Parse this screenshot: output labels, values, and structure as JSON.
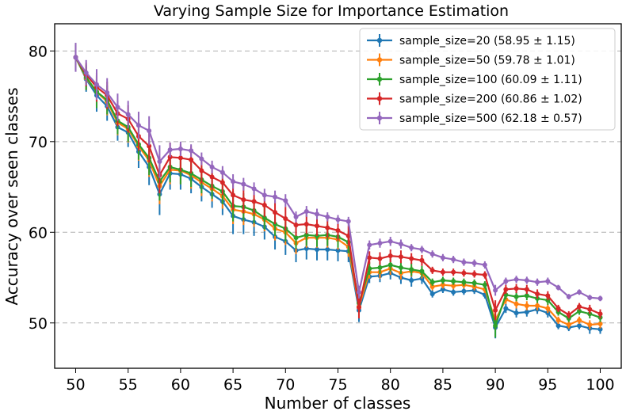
{
  "chart_data": {
    "type": "line",
    "title": "Varying Sample Size for Importance Estimation",
    "xlabel": "Number of classes",
    "ylabel": "Accuracy over seen classes",
    "xlim": [
      48,
      102
    ],
    "ylim": [
      45,
      83
    ],
    "xticks": [
      50,
      55,
      60,
      65,
      70,
      75,
      80,
      85,
      90,
      95,
      100
    ],
    "yticks": [
      50,
      60,
      70,
      80
    ],
    "grid": "horizontal-dashed",
    "legend_position": "top-right",
    "x": [
      50,
      51,
      52,
      53,
      54,
      55,
      56,
      57,
      58,
      59,
      60,
      61,
      62,
      63,
      64,
      65,
      66,
      67,
      68,
      69,
      70,
      71,
      72,
      73,
      74,
      75,
      76,
      77,
      78,
      79,
      80,
      81,
      82,
      83,
      84,
      85,
      86,
      87,
      88,
      89,
      90,
      91,
      92,
      93,
      94,
      95,
      96,
      97,
      98,
      99,
      100
    ],
    "series": [
      {
        "name": "sample_size=20 (58.95 ± 1.15)",
        "color": "#1f77b4",
        "values": [
          79.3,
          76.9,
          75.1,
          73.9,
          71.6,
          71.0,
          68.9,
          67.2,
          64.2,
          66.5,
          66.4,
          65.9,
          65.0,
          64.2,
          63.4,
          61.8,
          61.4,
          61.1,
          60.6,
          59.5,
          59.0,
          58.0,
          58.2,
          58.1,
          58.1,
          58.0,
          57.9,
          51.4,
          55.1,
          55.2,
          55.5,
          55.0,
          54.7,
          54.9,
          53.2,
          53.7,
          53.4,
          53.5,
          53.6,
          53.1,
          49.5,
          51.6,
          51.1,
          51.2,
          51.5,
          51.1,
          49.7,
          49.5,
          49.7,
          49.4,
          49.3
        ],
        "errors": [
          1.5,
          1.4,
          1.8,
          1.6,
          1.5,
          1.6,
          1.8,
          2.0,
          2.3,
          1.8,
          1.7,
          1.6,
          1.6,
          1.5,
          1.5,
          2.0,
          1.6,
          1.5,
          1.4,
          1.4,
          1.5,
          1.3,
          1.2,
          1.2,
          1.2,
          1.2,
          1.2,
          1.3,
          0.7,
          0.7,
          0.7,
          0.7,
          0.7,
          0.6,
          0.4,
          0.4,
          0.4,
          0.4,
          0.4,
          0.4,
          1.2,
          0.5,
          0.5,
          0.5,
          0.5,
          0.5,
          0.4,
          0.4,
          0.4,
          0.6,
          0.5
        ]
      },
      {
        "name": "sample_size=50 (59.78 ± 1.01)",
        "color": "#ff7f0e",
        "values": [
          79.3,
          77.0,
          75.5,
          74.4,
          72.1,
          71.4,
          69.5,
          67.9,
          65.1,
          66.9,
          66.8,
          66.3,
          65.5,
          64.8,
          64.0,
          62.5,
          62.3,
          62.0,
          61.4,
          60.4,
          60.0,
          58.8,
          59.4,
          59.4,
          59.4,
          59.2,
          58.4,
          51.8,
          55.6,
          55.6,
          56.0,
          55.5,
          55.7,
          55.5,
          54.0,
          54.2,
          54.1,
          54.2,
          54.0,
          53.7,
          50.3,
          52.6,
          52.1,
          51.9,
          51.9,
          51.6,
          50.3,
          49.8,
          50.3,
          49.8,
          49.9
        ],
        "errors": [
          1.4,
          1.3,
          1.6,
          1.5,
          1.4,
          1.5,
          1.6,
          1.8,
          2.0,
          1.6,
          1.5,
          1.5,
          1.5,
          1.4,
          1.4,
          1.6,
          1.5,
          1.4,
          1.3,
          1.3,
          1.4,
          1.2,
          1.1,
          1.1,
          1.1,
          1.1,
          1.1,
          1.2,
          0.7,
          0.7,
          0.7,
          0.7,
          0.6,
          0.6,
          0.4,
          0.4,
          0.4,
          0.4,
          0.4,
          0.4,
          1.1,
          0.5,
          0.5,
          0.5,
          0.5,
          0.5,
          0.4,
          0.4,
          0.4,
          0.5,
          0.5
        ]
      },
      {
        "name": "sample_size=100 (60.09 ± 1.11)",
        "color": "#2ca02c",
        "values": [
          79.3,
          77.1,
          75.5,
          74.6,
          72.3,
          71.6,
          69.7,
          68.2,
          65.6,
          67.2,
          66.9,
          66.5,
          65.8,
          65.1,
          64.5,
          62.9,
          62.8,
          62.4,
          61.6,
          60.9,
          60.4,
          59.4,
          59.7,
          59.6,
          59.7,
          59.5,
          58.9,
          52.2,
          56.0,
          56.1,
          56.4,
          56.1,
          55.9,
          55.7,
          54.5,
          54.7,
          54.6,
          54.5,
          54.4,
          54.2,
          49.7,
          53.1,
          52.9,
          53.0,
          52.7,
          52.5,
          51.2,
          50.5,
          51.3,
          51.0,
          50.6
        ],
        "errors": [
          1.5,
          1.4,
          1.8,
          1.6,
          1.5,
          1.6,
          1.7,
          1.9,
          2.1,
          1.7,
          1.6,
          1.5,
          1.5,
          1.4,
          1.4,
          1.7,
          1.5,
          1.4,
          1.3,
          1.3,
          1.4,
          1.2,
          1.2,
          1.2,
          1.2,
          1.2,
          1.2,
          1.3,
          0.7,
          0.7,
          0.7,
          0.7,
          0.7,
          0.6,
          0.4,
          0.4,
          0.4,
          0.4,
          0.4,
          0.4,
          1.3,
          0.5,
          0.5,
          0.5,
          0.5,
          0.5,
          0.4,
          0.4,
          0.4,
          0.5,
          0.5
        ]
      },
      {
        "name": "sample_size=200 (60.86 ± 1.02)",
        "color": "#d62728",
        "values": [
          79.3,
          77.4,
          76.0,
          75.1,
          73.1,
          72.5,
          70.6,
          69.5,
          66.3,
          68.3,
          68.2,
          68.0,
          66.8,
          66.1,
          65.5,
          64.1,
          63.6,
          63.4,
          63.0,
          62.2,
          61.5,
          60.8,
          60.9,
          60.7,
          60.5,
          60.2,
          59.6,
          51.7,
          57.2,
          57.1,
          57.4,
          57.3,
          57.1,
          56.9,
          55.8,
          55.6,
          55.6,
          55.5,
          55.4,
          55.3,
          51.4,
          53.7,
          53.8,
          53.7,
          53.2,
          53.0,
          51.6,
          50.9,
          51.8,
          51.5,
          51.0
        ],
        "errors": [
          1.4,
          1.3,
          1.6,
          1.5,
          1.4,
          1.5,
          1.6,
          1.8,
          2.0,
          1.6,
          1.5,
          1.5,
          1.4,
          1.4,
          1.4,
          1.6,
          1.5,
          1.4,
          1.3,
          1.3,
          1.3,
          1.2,
          1.1,
          1.1,
          1.1,
          1.1,
          1.1,
          1.2,
          0.7,
          0.7,
          0.7,
          0.7,
          0.6,
          0.6,
          0.4,
          0.4,
          0.4,
          0.4,
          0.4,
          0.4,
          1.1,
          0.5,
          0.5,
          0.5,
          0.5,
          0.5,
          0.4,
          0.4,
          0.4,
          0.5,
          0.5
        ]
      },
      {
        "name": "sample_size=500 (62.18 ± 0.57)",
        "color": "#9467bd",
        "values": [
          79.3,
          77.6,
          76.3,
          75.4,
          73.8,
          73.0,
          71.8,
          71.2,
          67.8,
          69.1,
          69.2,
          69.0,
          68.1,
          67.2,
          66.6,
          65.6,
          65.3,
          64.8,
          64.1,
          63.9,
          63.5,
          61.7,
          62.3,
          62.0,
          61.7,
          61.4,
          61.2,
          53.4,
          58.6,
          58.8,
          59.0,
          58.7,
          58.3,
          58.1,
          57.6,
          57.2,
          57.0,
          56.7,
          56.6,
          56.4,
          53.6,
          54.6,
          54.8,
          54.7,
          54.5,
          54.6,
          53.9,
          52.9,
          53.4,
          52.8,
          52.7
        ],
        "errors": [
          1.6,
          1.4,
          1.7,
          1.6,
          1.5,
          1.5,
          1.5,
          1.6,
          1.8,
          0.8,
          0.8,
          0.7,
          0.7,
          0.7,
          0.7,
          0.8,
          0.7,
          0.7,
          0.7,
          0.7,
          0.7,
          0.6,
          0.6,
          0.6,
          0.5,
          0.5,
          0.5,
          0.7,
          0.5,
          0.5,
          0.5,
          0.5,
          0.4,
          0.4,
          0.4,
          0.4,
          0.4,
          0.4,
          0.4,
          0.4,
          0.6,
          0.4,
          0.4,
          0.4,
          0.4,
          0.4,
          0.3,
          0.3,
          0.3,
          0.3,
          0.3
        ]
      }
    ]
  }
}
